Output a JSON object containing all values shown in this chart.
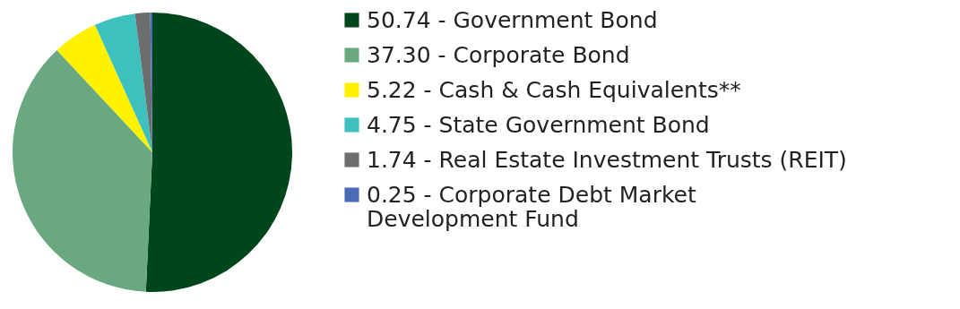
{
  "chart_data": {
    "type": "pie",
    "categories": [
      "50.74 - Government Bond",
      "37.30 - Corporate Bond",
      "5.22 - Cash & Cash Equivalents**",
      "4.75 - State Government Bond",
      "1.74 - Real Estate Investment Trusts (REIT)",
      "0.25 - Corporate Debt Market\nDevelopment Fund"
    ],
    "values": [
      50.74,
      37.3,
      5.22,
      4.75,
      1.74,
      0.25
    ],
    "colors": [
      "#00461c",
      "#6aa882",
      "#fff200",
      "#3ec1be",
      "#6c6d6f",
      "#4a6cb7"
    ],
    "legend": "right"
  }
}
